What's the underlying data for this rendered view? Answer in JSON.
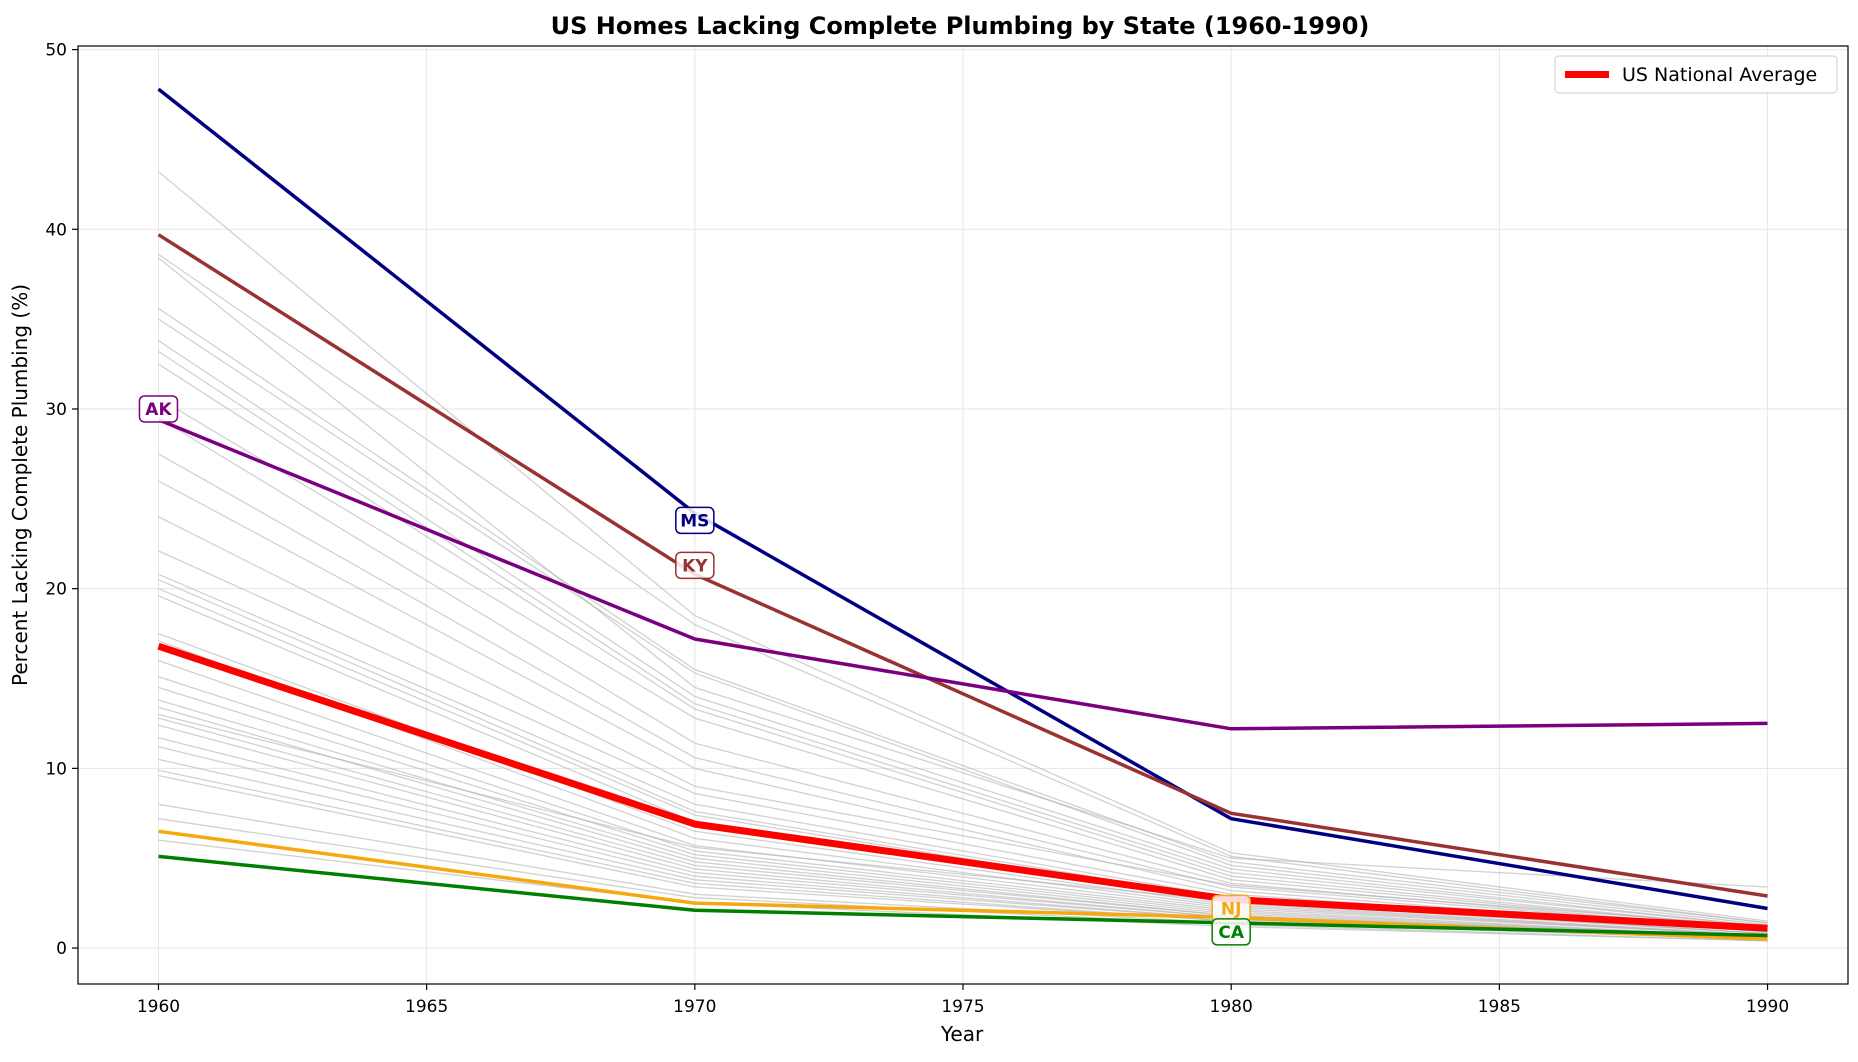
{
  "chart_data": {
    "type": "line",
    "title": "US Homes Lacking Complete Plumbing by State (1960-1990)",
    "xlabel": "Year",
    "ylabel": "Percent Lacking Complete Plumbing (%)",
    "x": [
      1960,
      1970,
      1980,
      1990
    ],
    "xlim": [
      1958.5,
      1991.5
    ],
    "ylim": [
      -2,
      50.2
    ],
    "xticks": [
      "1960",
      "1965",
      "1970",
      "1975",
      "1980",
      "1985",
      "1990"
    ],
    "yticks": [
      "0",
      "10",
      "20",
      "30",
      "40",
      "50"
    ],
    "grid": true,
    "legend": {
      "position": "top-right",
      "entries": [
        "US National Average"
      ]
    },
    "background_series": [
      [
        43.2,
        18.5,
        5.3,
        1.5
      ],
      [
        38.6,
        18.0,
        5.1,
        1.4
      ],
      [
        35.6,
        15.5,
        4.8,
        1.4
      ],
      [
        35.0,
        15.3,
        4.6,
        1.3
      ],
      [
        33.8,
        14.0,
        4.4,
        1.2
      ],
      [
        33.2,
        13.6,
        4.2,
        1.2
      ],
      [
        32.5,
        13.3,
        4.0,
        1.1
      ],
      [
        30.6,
        12.8,
        3.8,
        1.1
      ],
      [
        29.5,
        11.4,
        3.6,
        1.0
      ],
      [
        27.5,
        10.6,
        3.4,
        1.0
      ],
      [
        26.0,
        10.0,
        3.2,
        0.9
      ],
      [
        22.1,
        8.6,
        3.0,
        0.9
      ],
      [
        20.8,
        8.0,
        2.8,
        0.8
      ],
      [
        20.5,
        7.6,
        2.7,
        0.8
      ],
      [
        20.0,
        7.4,
        2.6,
        0.8
      ],
      [
        19.6,
        7.0,
        2.5,
        0.7
      ],
      [
        17.5,
        6.5,
        2.4,
        0.7
      ],
      [
        17.1,
        6.1,
        2.3,
        0.7
      ],
      [
        16.0,
        5.7,
        2.2,
        0.7
      ],
      [
        15.1,
        5.4,
        2.1,
        0.6
      ],
      [
        14.5,
        5.2,
        2.0,
        0.6
      ],
      [
        13.8,
        5.0,
        1.9,
        0.6
      ],
      [
        13.4,
        4.8,
        1.8,
        0.6
      ],
      [
        12.8,
        4.6,
        1.8,
        0.6
      ],
      [
        12.4,
        4.4,
        1.7,
        0.5
      ],
      [
        11.7,
        4.2,
        1.7,
        0.5
      ],
      [
        11.2,
        4.0,
        1.6,
        0.5
      ],
      [
        10.5,
        3.8,
        1.6,
        0.5
      ],
      [
        9.9,
        3.6,
        1.5,
        0.5
      ],
      [
        9.6,
        3.4,
        1.5,
        0.5
      ],
      [
        8.0,
        3.0,
        1.4,
        0.5
      ],
      [
        7.2,
        2.8,
        1.3,
        0.4
      ],
      [
        6.0,
        2.5,
        1.2,
        0.4
      ],
      [
        38.4,
        14.5,
        5.0,
        3.4
      ],
      [
        24.0,
        9.0,
        3.5,
        1.2
      ],
      [
        13.0,
        5.6,
        2.6,
        1.0
      ]
    ],
    "series": [
      {
        "name": "MS",
        "color": "#000080",
        "values": [
          47.8,
          24.2,
          7.2,
          2.2
        ]
      },
      {
        "name": "KY",
        "color": "#993333",
        "values": [
          39.7,
          20.8,
          7.5,
          2.9
        ]
      },
      {
        "name": "AK",
        "color": "#7a0080",
        "values": [
          29.4,
          17.2,
          12.2,
          12.5
        ]
      },
      {
        "name": "NJ",
        "color": "#f5a80f",
        "values": [
          6.5,
          2.5,
          1.7,
          0.5
        ]
      },
      {
        "name": "CA",
        "color": "#007f00",
        "values": [
          5.1,
          2.1,
          1.4,
          0.7
        ]
      },
      {
        "name": "US National Average",
        "color": "#ff0000",
        "values": [
          16.8,
          6.9,
          2.7,
          1.1
        ]
      }
    ],
    "annotations": [
      {
        "text": "AK",
        "x": 1960,
        "y": 30.0,
        "color": "#7a0080"
      },
      {
        "text": "MS",
        "x": 1970,
        "y": 23.8,
        "color": "#000080"
      },
      {
        "text": "KY",
        "x": 1970,
        "y": 21.3,
        "color": "#993333"
      },
      {
        "text": "NJ",
        "x": 1980,
        "y": 2.2,
        "color": "#f5a80f"
      },
      {
        "text": "CA",
        "x": 1980,
        "y": 0.9,
        "color": "#007f00"
      }
    ]
  }
}
